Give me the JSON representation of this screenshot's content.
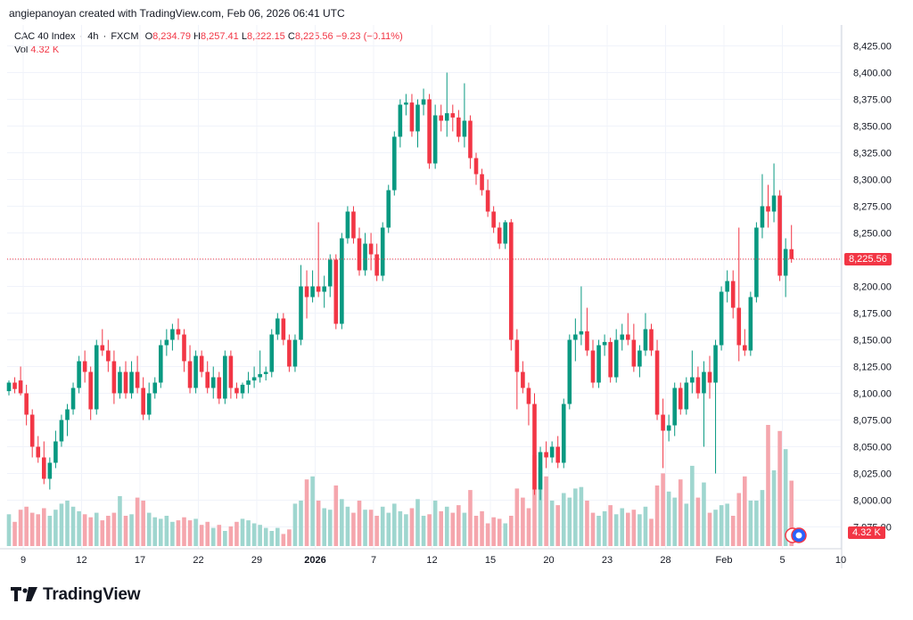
{
  "header": {
    "attribution": "angiepanoyan created with TradingView.com, Feb 06, 2026 06:41 UTC"
  },
  "legend": {
    "symbol": "CAC 40 Index",
    "interval": "4h",
    "exchange": "FXCM",
    "o_label": "O",
    "o_value": "8,234.79",
    "h_label": "H",
    "h_value": "8,257.41",
    "l_label": "L",
    "l_value": "8,222.15",
    "c_label": "C",
    "c_value": "8,225.56",
    "change": "−9.23 (−0.11%)",
    "vol_label": "Vol",
    "vol_value": "4.32 K"
  },
  "last_price_label": "8,225.56",
  "volume_label": "4.32 K",
  "brand": {
    "name": "TradingView"
  },
  "colors": {
    "up": "#089981",
    "down": "#f23645",
    "up_vol": "#9fd6cf",
    "down_vol": "#f5a6ad",
    "grid": "#f0f3fa"
  },
  "chart_data": {
    "type": "candlestick",
    "title": "CAC 40 Index · 4h · FXCM",
    "ylim": [
      7975,
      8440
    ],
    "y_ticks": [
      "8,425.00",
      "8,400.00",
      "8,375.00",
      "8,350.00",
      "8,325.00",
      "8,300.00",
      "8,275.00",
      "8,250.00",
      "8,225.00",
      "8,200.00",
      "8,175.00",
      "8,150.00",
      "8,125.00",
      "8,100.00",
      "8,075.00",
      "8,050.00",
      "8,025.00",
      "8,000.00",
      "7,975.00"
    ],
    "y_tick_values": [
      8425,
      8400,
      8375,
      8350,
      8325,
      8300,
      8275,
      8250,
      8225,
      8200,
      8175,
      8150,
      8125,
      8100,
      8075,
      8050,
      8025,
      8000,
      7975
    ],
    "x_ticks": [
      {
        "label": "9",
        "index": 0
      },
      {
        "label": "12",
        "index": 10
      },
      {
        "label": "17",
        "index": 20
      },
      {
        "label": "22",
        "index": 30
      },
      {
        "label": "29",
        "index": 40
      },
      {
        "label": "2026",
        "index": 50,
        "bold": true
      },
      {
        "label": "7",
        "index": 60
      },
      {
        "label": "12",
        "index": 70
      },
      {
        "label": "15",
        "index": 80
      },
      {
        "label": "20",
        "index": 90
      },
      {
        "label": "23",
        "index": 100
      },
      {
        "label": "28",
        "index": 110
      },
      {
        "label": "Feb",
        "index": 120
      },
      {
        "label": "5",
        "index": 130
      },
      {
        "label": "10",
        "index": 140
      }
    ],
    "last_price": 8225.56,
    "vol_max": 9,
    "candles": [
      {
        "o": 8102,
        "h": 8112,
        "l": 8098,
        "c": 8110,
        "v": 2.1
      },
      {
        "o": 8110,
        "h": 8115,
        "l": 8100,
        "c": 8104,
        "v": 1.6
      },
      {
        "o": 8112,
        "h": 8125,
        "l": 8098,
        "c": 8100,
        "v": 2.4
      },
      {
        "o": 8100,
        "h": 8108,
        "l": 8070,
        "c": 8080,
        "v": 2.6
      },
      {
        "o": 8080,
        "h": 8085,
        "l": 8040,
        "c": 8050,
        "v": 2.2
      },
      {
        "o": 8050,
        "h": 8060,
        "l": 8035,
        "c": 8040,
        "v": 2.1
      },
      {
        "o": 8040,
        "h": 8055,
        "l": 8015,
        "c": 8020,
        "v": 2.5
      },
      {
        "o": 8020,
        "h": 8040,
        "l": 8010,
        "c": 8035,
        "v": 2.0
      },
      {
        "o": 8035,
        "h": 8065,
        "l": 8030,
        "c": 8055,
        "v": 2.4
      },
      {
        "o": 8055,
        "h": 8080,
        "l": 8050,
        "c": 8075,
        "v": 2.8
      },
      {
        "o": 8075,
        "h": 8090,
        "l": 8060,
        "c": 8085,
        "v": 3.0
      },
      {
        "o": 8085,
        "h": 8110,
        "l": 8080,
        "c": 8105,
        "v": 2.6
      },
      {
        "o": 8105,
        "h": 8135,
        "l": 8100,
        "c": 8130,
        "v": 2.3
      },
      {
        "o": 8130,
        "h": 8140,
        "l": 8110,
        "c": 8120,
        "v": 2.1
      },
      {
        "o": 8120,
        "h": 8125,
        "l": 8075,
        "c": 8085,
        "v": 1.9
      },
      {
        "o": 8085,
        "h": 8150,
        "l": 8080,
        "c": 8145,
        "v": 2.2
      },
      {
        "o": 8145,
        "h": 8160,
        "l": 8135,
        "c": 8140,
        "v": 1.7
      },
      {
        "o": 8140,
        "h": 8150,
        "l": 8120,
        "c": 8130,
        "v": 2.0
      },
      {
        "o": 8130,
        "h": 8140,
        "l": 8090,
        "c": 8100,
        "v": 2.2
      },
      {
        "o": 8100,
        "h": 8125,
        "l": 8095,
        "c": 8120,
        "v": 3.3
      },
      {
        "o": 8120,
        "h": 8130,
        "l": 8095,
        "c": 8100,
        "v": 2.0
      },
      {
        "o": 8100,
        "h": 8130,
        "l": 8095,
        "c": 8120,
        "v": 2.1
      },
      {
        "o": 8120,
        "h": 8135,
        "l": 8100,
        "c": 8105,
        "v": 3.2
      },
      {
        "o": 8105,
        "h": 8115,
        "l": 8075,
        "c": 8080,
        "v": 3.0
      },
      {
        "o": 8080,
        "h": 8110,
        "l": 8075,
        "c": 8100,
        "v": 2.2
      },
      {
        "o": 8100,
        "h": 8115,
        "l": 8095,
        "c": 8110,
        "v": 1.9
      },
      {
        "o": 8110,
        "h": 8150,
        "l": 8105,
        "c": 8145,
        "v": 1.8
      },
      {
        "o": 8145,
        "h": 8160,
        "l": 8135,
        "c": 8150,
        "v": 2.0
      },
      {
        "o": 8150,
        "h": 8165,
        "l": 8140,
        "c": 8160,
        "v": 1.6
      },
      {
        "o": 8160,
        "h": 8170,
        "l": 8150,
        "c": 8155,
        "v": 1.7
      },
      {
        "o": 8155,
        "h": 8160,
        "l": 8120,
        "c": 8130,
        "v": 1.9
      },
      {
        "o": 8130,
        "h": 8145,
        "l": 8100,
        "c": 8105,
        "v": 1.7
      },
      {
        "o": 8105,
        "h": 8140,
        "l": 8100,
        "c": 8135,
        "v": 1.8
      },
      {
        "o": 8135,
        "h": 8140,
        "l": 8115,
        "c": 8120,
        "v": 1.4
      },
      {
        "o": 8120,
        "h": 8130,
        "l": 8100,
        "c": 8105,
        "v": 1.6
      },
      {
        "o": 8105,
        "h": 8125,
        "l": 8095,
        "c": 8115,
        "v": 1.2
      },
      {
        "o": 8115,
        "h": 8120,
        "l": 8090,
        "c": 8095,
        "v": 1.4
      },
      {
        "o": 8095,
        "h": 8140,
        "l": 8090,
        "c": 8135,
        "v": 1.0
      },
      {
        "o": 8135,
        "h": 8140,
        "l": 8095,
        "c": 8105,
        "v": 1.3
      },
      {
        "o": 8105,
        "h": 8110,
        "l": 8095,
        "c": 8100,
        "v": 1.6
      },
      {
        "o": 8100,
        "h": 8110,
        "l": 8095,
        "c": 8108,
        "v": 1.8
      },
      {
        "o": 8108,
        "h": 8120,
        "l": 8100,
        "c": 8112,
        "v": 1.7
      },
      {
        "o": 8112,
        "h": 8125,
        "l": 8105,
        "c": 8115,
        "v": 1.5
      },
      {
        "o": 8115,
        "h": 8140,
        "l": 8110,
        "c": 8118,
        "v": 1.4
      },
      {
        "o": 8118,
        "h": 8125,
        "l": 8112,
        "c": 8120,
        "v": 1.2
      },
      {
        "o": 8120,
        "h": 8160,
        "l": 8115,
        "c": 8155,
        "v": 1.0
      },
      {
        "o": 8155,
        "h": 8175,
        "l": 8150,
        "c": 8170,
        "v": 1.2
      },
      {
        "o": 8170,
        "h": 8175,
        "l": 8145,
        "c": 8150,
        "v": 0.8
      },
      {
        "o": 8150,
        "h": 8155,
        "l": 8120,
        "c": 8125,
        "v": 1.1
      },
      {
        "o": 8125,
        "h": 8155,
        "l": 8120,
        "c": 8150,
        "v": 2.8
      },
      {
        "o": 8150,
        "h": 8220,
        "l": 8145,
        "c": 8200,
        "v": 3.0
      },
      {
        "o": 8200,
        "h": 8215,
        "l": 8170,
        "c": 8190,
        "v": 4.4
      },
      {
        "o": 8190,
        "h": 8215,
        "l": 8185,
        "c": 8200,
        "v": 4.6
      },
      {
        "o": 8200,
        "h": 8260,
        "l": 8190,
        "c": 8195,
        "v": 3.0
      },
      {
        "o": 8195,
        "h": 8210,
        "l": 8180,
        "c": 8200,
        "v": 2.5
      },
      {
        "o": 8200,
        "h": 8230,
        "l": 8190,
        "c": 8225,
        "v": 2.4
      },
      {
        "o": 8225,
        "h": 8230,
        "l": 8160,
        "c": 8165,
        "v": 4.0
      },
      {
        "o": 8165,
        "h": 8250,
        "l": 8160,
        "c": 8245,
        "v": 3.1
      },
      {
        "o": 8245,
        "h": 8275,
        "l": 8240,
        "c": 8270,
        "v": 2.6
      },
      {
        "o": 8270,
        "h": 8275,
        "l": 8240,
        "c": 8245,
        "v": 2.2
      },
      {
        "o": 8245,
        "h": 8255,
        "l": 8210,
        "c": 8215,
        "v": 3.0
      },
      {
        "o": 8215,
        "h": 8250,
        "l": 8210,
        "c": 8240,
        "v": 2.4
      },
      {
        "o": 8240,
        "h": 8250,
        "l": 8215,
        "c": 8230,
        "v": 2.4
      },
      {
        "o": 8230,
        "h": 8240,
        "l": 8205,
        "c": 8210,
        "v": 2.0
      },
      {
        "o": 8210,
        "h": 8260,
        "l": 8205,
        "c": 8255,
        "v": 2.6
      },
      {
        "o": 8255,
        "h": 8295,
        "l": 8250,
        "c": 8290,
        "v": 2.2
      },
      {
        "o": 8290,
        "h": 8345,
        "l": 8285,
        "c": 8340,
        "v": 2.8
      },
      {
        "o": 8340,
        "h": 8375,
        "l": 8330,
        "c": 8370,
        "v": 2.3
      },
      {
        "o": 8370,
        "h": 8380,
        "l": 8360,
        "c": 8372,
        "v": 2.1
      },
      {
        "o": 8372,
        "h": 8380,
        "l": 8340,
        "c": 8345,
        "v": 2.5
      },
      {
        "o": 8345,
        "h": 8375,
        "l": 8330,
        "c": 8370,
        "v": 3.1
      },
      {
        "o": 8370,
        "h": 8385,
        "l": 8360,
        "c": 8375,
        "v": 2.0
      },
      {
        "o": 8375,
        "h": 8380,
        "l": 8310,
        "c": 8315,
        "v": 2.1
      },
      {
        "o": 8315,
        "h": 8370,
        "l": 8310,
        "c": 8360,
        "v": 3.0
      },
      {
        "o": 8360,
        "h": 8370,
        "l": 8345,
        "c": 8355,
        "v": 2.3
      },
      {
        "o": 8355,
        "h": 8400,
        "l": 8340,
        "c": 8362,
        "v": 2.6
      },
      {
        "o": 8362,
        "h": 8370,
        "l": 8345,
        "c": 8358,
        "v": 2.2
      },
      {
        "o": 8358,
        "h": 8365,
        "l": 8335,
        "c": 8340,
        "v": 2.7
      },
      {
        "o": 8340,
        "h": 8390,
        "l": 8330,
        "c": 8355,
        "v": 2.2
      },
      {
        "o": 8355,
        "h": 8360,
        "l": 8310,
        "c": 8320,
        "v": 3.7
      },
      {
        "o": 8320,
        "h": 8325,
        "l": 8295,
        "c": 8305,
        "v": 2.0
      },
      {
        "o": 8305,
        "h": 8310,
        "l": 8285,
        "c": 8290,
        "v": 2.3
      },
      {
        "o": 8290,
        "h": 8300,
        "l": 8265,
        "c": 8270,
        "v": 1.5
      },
      {
        "o": 8270,
        "h": 8275,
        "l": 8250,
        "c": 8255,
        "v": 1.9
      },
      {
        "o": 8255,
        "h": 8260,
        "l": 8235,
        "c": 8240,
        "v": 1.8
      },
      {
        "o": 8240,
        "h": 8262,
        "l": 8235,
        "c": 8260,
        "v": 1.5
      },
      {
        "o": 8260,
        "h": 8263,
        "l": 8140,
        "c": 8150,
        "v": 2.0
      },
      {
        "o": 8150,
        "h": 8160,
        "l": 8085,
        "c": 8120,
        "v": 3.8
      },
      {
        "o": 8120,
        "h": 8130,
        "l": 8100,
        "c": 8105,
        "v": 3.2
      },
      {
        "o": 8105,
        "h": 8110,
        "l": 8070,
        "c": 8090,
        "v": 2.5
      },
      {
        "o": 8090,
        "h": 8100,
        "l": 8005,
        "c": 8010,
        "v": 6.0
      },
      {
        "o": 8010,
        "h": 8050,
        "l": 8000,
        "c": 8045,
        "v": 5.2
      },
      {
        "o": 8045,
        "h": 8055,
        "l": 8030,
        "c": 8040,
        "v": 4.6
      },
      {
        "o": 8040,
        "h": 8055,
        "l": 8035,
        "c": 8050,
        "v": 3.0
      },
      {
        "o": 8050,
        "h": 8060,
        "l": 8030,
        "c": 8035,
        "v": 2.7
      },
      {
        "o": 8035,
        "h": 8095,
        "l": 8030,
        "c": 8090,
        "v": 3.5
      },
      {
        "o": 8090,
        "h": 8155,
        "l": 8085,
        "c": 8150,
        "v": 3.2
      },
      {
        "o": 8150,
        "h": 8170,
        "l": 8130,
        "c": 8155,
        "v": 3.8
      },
      {
        "o": 8155,
        "h": 8200,
        "l": 8145,
        "c": 8158,
        "v": 3.9
      },
      {
        "o": 8158,
        "h": 8180,
        "l": 8135,
        "c": 8140,
        "v": 3.0
      },
      {
        "o": 8140,
        "h": 8150,
        "l": 8105,
        "c": 8110,
        "v": 2.2
      },
      {
        "o": 8110,
        "h": 8150,
        "l": 8105,
        "c": 8145,
        "v": 2.0
      },
      {
        "o": 8145,
        "h": 8155,
        "l": 8135,
        "c": 8148,
        "v": 2.3
      },
      {
        "o": 8148,
        "h": 8152,
        "l": 8110,
        "c": 8115,
        "v": 2.7
      },
      {
        "o": 8115,
        "h": 8160,
        "l": 8110,
        "c": 8150,
        "v": 2.1
      },
      {
        "o": 8150,
        "h": 8165,
        "l": 8140,
        "c": 8155,
        "v": 2.5
      },
      {
        "o": 8155,
        "h": 8175,
        "l": 8145,
        "c": 8150,
        "v": 2.2
      },
      {
        "o": 8150,
        "h": 8165,
        "l": 8120,
        "c": 8125,
        "v": 2.4
      },
      {
        "o": 8125,
        "h": 8145,
        "l": 8115,
        "c": 8140,
        "v": 2.1
      },
      {
        "o": 8140,
        "h": 8175,
        "l": 8135,
        "c": 8160,
        "v": 2.6
      },
      {
        "o": 8160,
        "h": 8165,
        "l": 8135,
        "c": 8140,
        "v": 1.8
      },
      {
        "o": 8140,
        "h": 8150,
        "l": 8075,
        "c": 8080,
        "v": 4.0
      },
      {
        "o": 8080,
        "h": 8095,
        "l": 8030,
        "c": 8065,
        "v": 4.8
      },
      {
        "o": 8065,
        "h": 8080,
        "l": 8055,
        "c": 8070,
        "v": 3.6
      },
      {
        "o": 8070,
        "h": 8110,
        "l": 8060,
        "c": 8105,
        "v": 3.2
      },
      {
        "o": 8105,
        "h": 8110,
        "l": 8080,
        "c": 8085,
        "v": 4.4
      },
      {
        "o": 8085,
        "h": 8115,
        "l": 8080,
        "c": 8110,
        "v": 2.8
      },
      {
        "o": 8110,
        "h": 8140,
        "l": 8100,
        "c": 8115,
        "v": 5.3
      },
      {
        "o": 8115,
        "h": 8125,
        "l": 8095,
        "c": 8100,
        "v": 3.2
      },
      {
        "o": 8100,
        "h": 8130,
        "l": 8050,
        "c": 8120,
        "v": 4.2
      },
      {
        "o": 8120,
        "h": 8135,
        "l": 8095,
        "c": 8110,
        "v": 2.2
      },
      {
        "o": 8110,
        "h": 8150,
        "l": 8025,
        "c": 8145,
        "v": 2.4
      },
      {
        "o": 8145,
        "h": 8200,
        "l": 8140,
        "c": 8195,
        "v": 2.7
      },
      {
        "o": 8195,
        "h": 8215,
        "l": 8185,
        "c": 8205,
        "v": 2.8
      },
      {
        "o": 8205,
        "h": 8215,
        "l": 8170,
        "c": 8180,
        "v": 2.0
      },
      {
        "o": 8180,
        "h": 8255,
        "l": 8130,
        "c": 8145,
        "v": 3.5
      },
      {
        "o": 8145,
        "h": 8160,
        "l": 8135,
        "c": 8140,
        "v": 4.6
      },
      {
        "o": 8140,
        "h": 8195,
        "l": 8135,
        "c": 8190,
        "v": 3.0
      },
      {
        "o": 8190,
        "h": 8260,
        "l": 8185,
        "c": 8255,
        "v": 3.0
      },
      {
        "o": 8255,
        "h": 8305,
        "l": 8245,
        "c": 8275,
        "v": 3.7
      },
      {
        "o": 8275,
        "h": 8295,
        "l": 8255,
        "c": 8270,
        "v": 8.0
      },
      {
        "o": 8270,
        "h": 8315,
        "l": 8260,
        "c": 8285,
        "v": 5.0
      },
      {
        "o": 8285,
        "h": 8290,
        "l": 8205,
        "c": 8210,
        "v": 7.6
      },
      {
        "o": 8210,
        "h": 8245,
        "l": 8190,
        "c": 8235,
        "v": 6.4
      },
      {
        "o": 8234.79,
        "h": 8257.41,
        "l": 8222.15,
        "c": 8225.56,
        "v": 4.32
      }
    ]
  }
}
